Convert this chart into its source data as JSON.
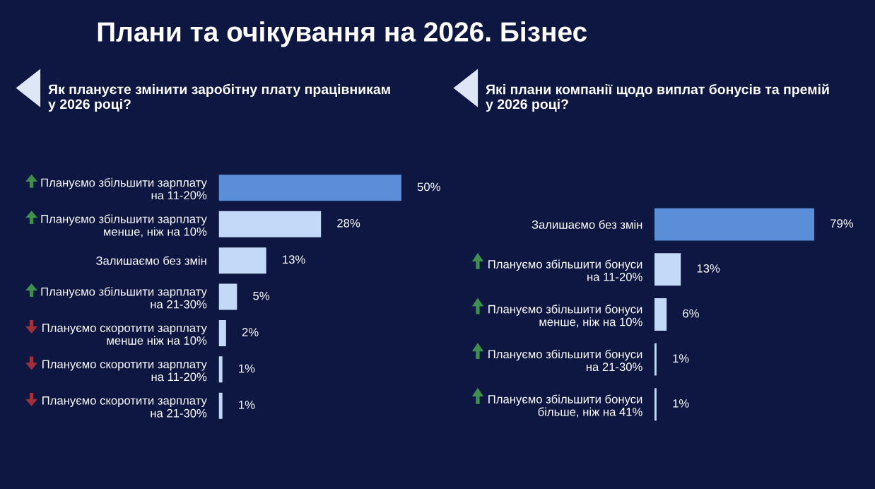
{
  "chart_data": [
    {
      "type": "bar",
      "orientation": "horizontal",
      "tick_labels": "y",
      "grid": false,
      "annotations": [
        "Плани та очікування на 2026. Бізнес"
      ],
      "title": "Як плануєте змінити заробітну плату працівникам\nу 2026 році?",
      "categories": [
        "Плануємо збільшити зарплату\nна 11-20%",
        "Плануємо збільшити зарплату\nменше, ніж на 10%",
        "Залишаємо без змін",
        "Плануємо збільшити зарплату\nна 21-30%",
        "Плануємо скоротити зарплату\nменше ніж на 10%",
        "Плануємо скоротити зарплату\nна 11-20%",
        "Плануємо скоротити зарплату\nна 21-30%"
      ],
      "values": [
        50,
        28,
        13,
        5,
        2,
        1,
        1
      ],
      "value_labels": [
        "50%",
        "28%",
        "13%",
        "5%",
        "2%",
        "1%",
        "1%"
      ],
      "colors": [
        "#5b8ed8",
        "#c3d9f7",
        "#c3d9f7",
        "#c3d9f7",
        "#c3d9f7",
        "#c3d9f7",
        "#c3d9f7"
      ]
    },
    {
      "type": "bar",
      "orientation": "horizontal",
      "tick_labels": "y",
      "grid": false,
      "title": "Які плани компанії щодо виплат бонусів та премій\nу 2026 році?",
      "categories": [
        "Залишаємо без змін",
        "Плануємо збільшити бонуси\nна 11-20%",
        "Плануємо збільшити бонуси\nменше, ніж на 10%",
        "Плануємо збільшити бонуси\nна 21-30%",
        "Плануємо збільшити бонуси\nбільше, ніж на 41%"
      ],
      "values": [
        79,
        13,
        6,
        1,
        1
      ],
      "value_labels": [
        "79%",
        "13%",
        "6%",
        "1%",
        "1%"
      ],
      "colors": [
        "#5b8ed8",
        "#c3d9f7",
        "#c3d9f7",
        "#c3d9f7",
        "#c3d9f7"
      ]
    }
  ]
}
